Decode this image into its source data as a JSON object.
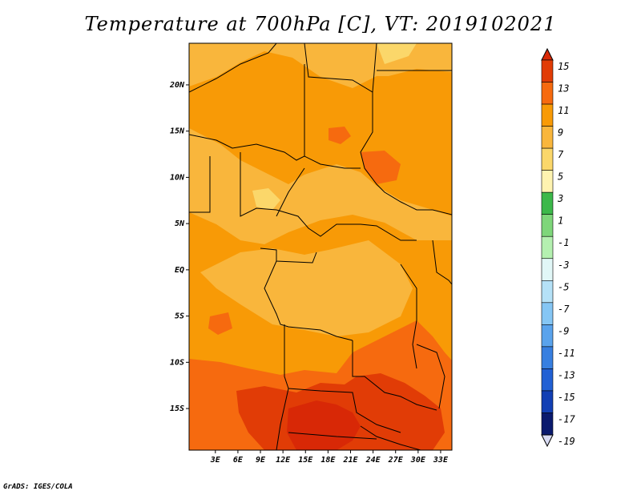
{
  "title": "Temperature at 700hPa [C], VT: 2019102021",
  "credit": "GrADS: IGES/COLA",
  "map": {
    "lon_range": [
      -0.5,
      34.5
    ],
    "lat_range": [
      -19.5,
      24.5
    ],
    "lat_ticks": [
      {
        "value": 20,
        "label": "20N"
      },
      {
        "value": 15,
        "label": "15N"
      },
      {
        "value": 10,
        "label": "10N"
      },
      {
        "value": 5,
        "label": "5N"
      },
      {
        "value": 0,
        "label": "EQ"
      },
      {
        "value": -5,
        "label": "5S"
      },
      {
        "value": -10,
        "label": "10S"
      },
      {
        "value": -15,
        "label": "15S"
      }
    ],
    "lon_ticks": [
      {
        "value": 3,
        "label": "3E"
      },
      {
        "value": 6,
        "label": "6E"
      },
      {
        "value": 9,
        "label": "9E"
      },
      {
        "value": 12,
        "label": "12E"
      },
      {
        "value": 15,
        "label": "15E"
      },
      {
        "value": 18,
        "label": "18E"
      },
      {
        "value": 21,
        "label": "21E"
      },
      {
        "value": 24,
        "label": "24E"
      },
      {
        "value": 27,
        "label": "27E"
      },
      {
        "value": 30,
        "label": "30E"
      },
      {
        "value": 33,
        "label": "33E"
      }
    ],
    "colors": {
      "c5_7": "#fbd76a",
      "c7_9": "#f9b63c",
      "c9_11": "#f89a06",
      "c11_13": "#f66a0f",
      "c13_15": "#e13c06",
      "c15_up": "#d82806"
    }
  },
  "colorbar": {
    "labels": [
      "15",
      "13",
      "11",
      "9",
      "7",
      "5",
      "3",
      "1",
      "-1",
      "-3",
      "-5",
      "-7",
      "-9",
      "-11",
      "-13",
      "-15",
      "-17",
      "-19"
    ],
    "colors": [
      "#d82806",
      "#e13c06",
      "#f66a0f",
      "#f89a06",
      "#f9b63c",
      "#fbd76a",
      "#fef3b0",
      "#3cb84a",
      "#7ed67a",
      "#b4f0b0",
      "#e1f7f7",
      "#b5e1f7",
      "#85c6f4",
      "#5aa3ec",
      "#377fe0",
      "#2160d4",
      "#123fb4",
      "#0a1a6e",
      "#0a0a40"
    ],
    "top_color": "#d82806",
    "bottom_color": "#d9dcf4"
  }
}
